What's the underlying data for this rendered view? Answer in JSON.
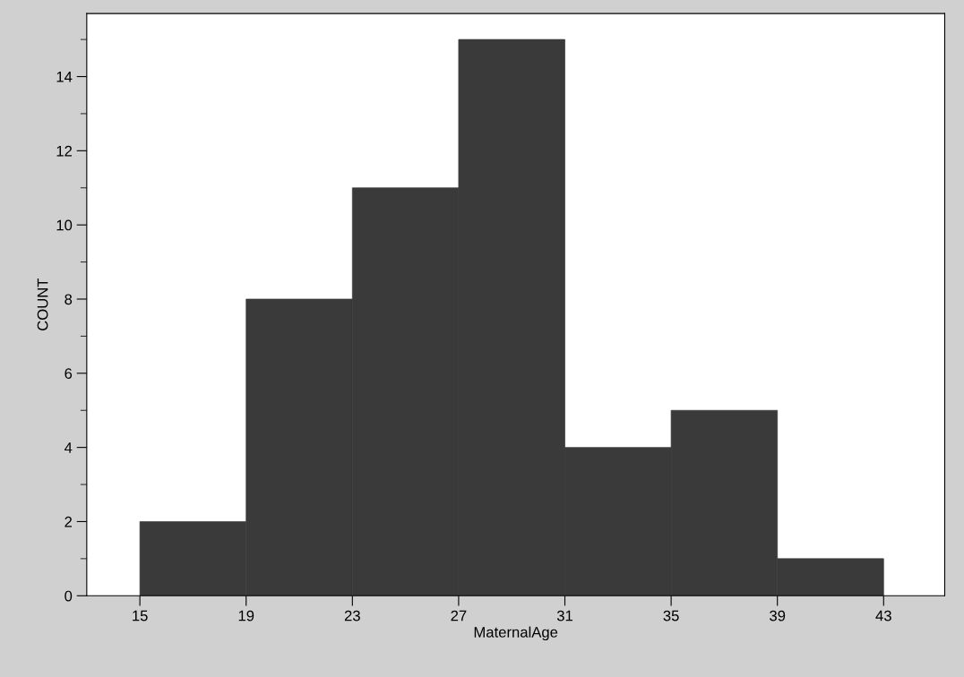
{
  "chart_data": {
    "type": "histogram",
    "xlabel": "MaternalAge",
    "ylabel": "COUNT",
    "bins": [
      15,
      19,
      23,
      27,
      31,
      35,
      39,
      43
    ],
    "values": [
      2,
      8,
      11,
      15,
      4,
      5,
      1
    ],
    "color": "#3a3a3a",
    "xlim": [
      13,
      45.3
    ],
    "ylim": [
      0,
      15.7
    ],
    "xticks": [
      15,
      19,
      23,
      27,
      31,
      35,
      39,
      43
    ],
    "yticks": [
      0,
      2,
      4,
      6,
      8,
      10,
      12,
      14
    ],
    "grid": false
  }
}
